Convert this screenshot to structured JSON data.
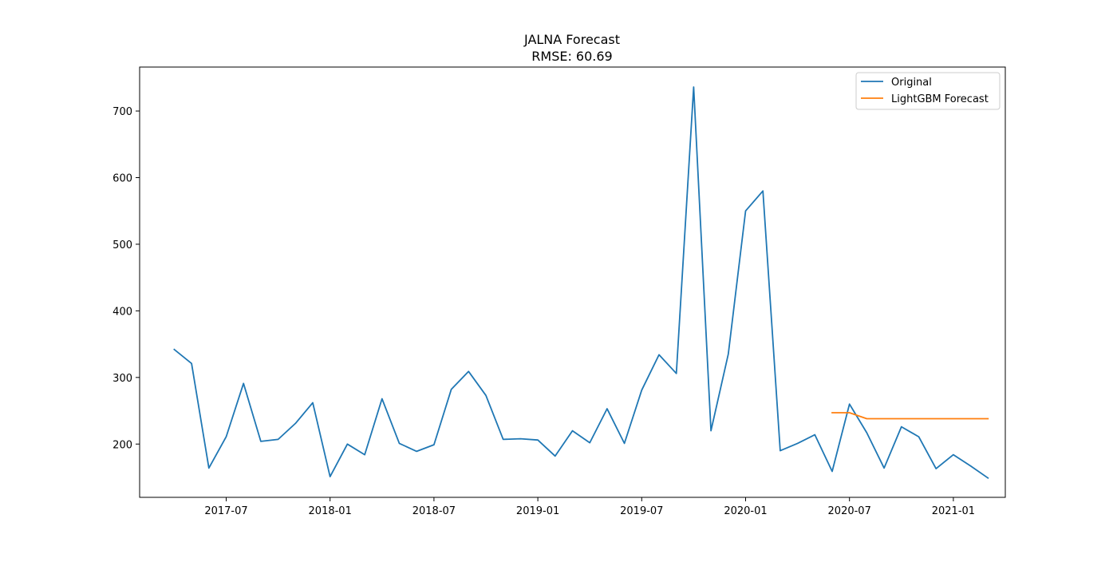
{
  "chart_data": {
    "type": "line",
    "title": "JALNA Forecast",
    "subtitle": "RMSE: 60.69",
    "xlabel": "",
    "ylabel": "",
    "grid": false,
    "legend_position": "top-right",
    "x_ticks": [
      "2017-07",
      "2018-01",
      "2018-07",
      "2019-01",
      "2019-07",
      "2020-01",
      "2020-07",
      "2021-01"
    ],
    "y_ticks": [
      200,
      300,
      400,
      500,
      600,
      700
    ],
    "xlim": [
      "2017-02-01",
      "2021-04-01"
    ],
    "ylim": [
      120,
      766
    ],
    "series": [
      {
        "name": "Original",
        "color": "#1f77b4",
        "x": [
          "2017-04",
          "2017-05",
          "2017-06",
          "2017-07",
          "2017-08",
          "2017-09",
          "2017-10",
          "2017-11",
          "2017-12",
          "2018-01",
          "2018-02",
          "2018-03",
          "2018-04",
          "2018-05",
          "2018-06",
          "2018-07",
          "2018-08",
          "2018-09",
          "2018-10",
          "2018-11",
          "2018-12",
          "2019-01",
          "2019-02",
          "2019-03",
          "2019-04",
          "2019-05",
          "2019-06",
          "2019-07",
          "2019-08",
          "2019-09",
          "2019-10",
          "2019-11",
          "2019-12",
          "2020-01",
          "2020-02",
          "2020-03",
          "2020-04",
          "2020-05",
          "2020-06",
          "2020-07",
          "2020-08",
          "2020-09",
          "2020-10",
          "2020-11",
          "2020-12",
          "2021-01",
          "2021-02",
          "2021-03"
        ],
        "values": [
          342,
          321,
          164,
          211,
          291,
          204,
          207,
          231,
          262,
          151,
          200,
          184,
          268,
          201,
          189,
          199,
          282,
          309,
          273,
          207,
          208,
          206,
          182,
          220,
          202,
          253,
          201,
          281,
          334,
          306,
          736,
          220,
          335,
          550,
          580,
          190,
          201,
          214,
          159,
          260,
          217,
          164,
          226,
          211,
          163,
          184,
          167,
          149
        ]
      },
      {
        "name": "LightGBM Forecast",
        "color": "#ff7f0e",
        "x": [
          "2020-06",
          "2020-07",
          "2020-08",
          "2020-09",
          "2020-10",
          "2020-11",
          "2020-12",
          "2021-01",
          "2021-02",
          "2021-03"
        ],
        "values": [
          247,
          247,
          238,
          238,
          238,
          238,
          238,
          238,
          238,
          238
        ]
      }
    ]
  }
}
